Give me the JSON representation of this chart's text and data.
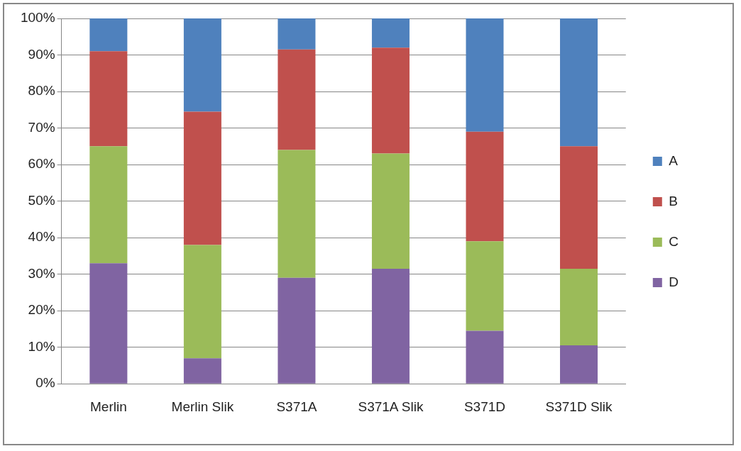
{
  "chart_data": {
    "type": "bar",
    "stacked": true,
    "categories": [
      "Merlin",
      "Merlin Slik",
      "S371A",
      "S371A Slik",
      "S371D",
      "S371D Slik"
    ],
    "series": [
      {
        "name": "D",
        "color": "#8064a2",
        "values": [
          33,
          7,
          29,
          31.5,
          14.5,
          10.5
        ]
      },
      {
        "name": "C",
        "color": "#9bbb59",
        "values": [
          32,
          31,
          35,
          31.5,
          24.5,
          21
        ]
      },
      {
        "name": "B",
        "color": "#c0504d",
        "values": [
          26,
          36.5,
          27.5,
          29,
          30,
          33.5
        ]
      },
      {
        "name": "A",
        "color": "#4f81bd",
        "values": [
          9,
          25.5,
          8.5,
          8,
          31,
          35
        ]
      }
    ],
    "ylim": [
      0,
      100
    ],
    "yticks": [
      {
        "value": 0,
        "label": "0%"
      },
      {
        "value": 10,
        "label": "10%"
      },
      {
        "value": 20,
        "label": "20%"
      },
      {
        "value": 30,
        "label": "30%"
      },
      {
        "value": 40,
        "label": "40%"
      },
      {
        "value": 50,
        "label": "50%"
      },
      {
        "value": 60,
        "label": "60%"
      },
      {
        "value": 70,
        "label": "70%"
      },
      {
        "value": 80,
        "label": "80%"
      },
      {
        "value": 90,
        "label": "90%"
      },
      {
        "value": 100,
        "label": "100%"
      }
    ],
    "grid": "y",
    "legend": "right"
  }
}
